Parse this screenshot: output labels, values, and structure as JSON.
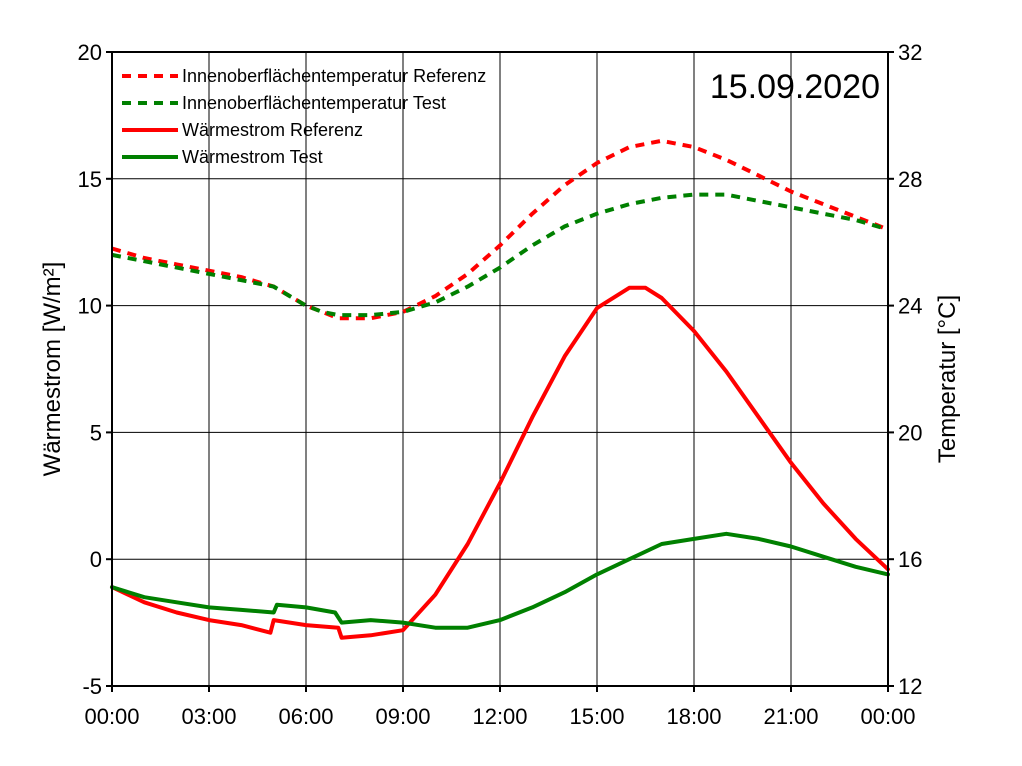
{
  "chart_data": {
    "type": "line",
    "date_label": "15.09.2020",
    "xlabel": "",
    "ylabel_left": "Wärmestrom [W/m²]",
    "ylabel_right": "Temperatur [°C]",
    "x_ticks": [
      "00:00",
      "03:00",
      "06:00",
      "09:00",
      "12:00",
      "15:00",
      "18:00",
      "21:00",
      "00:00"
    ],
    "xlim_hours": [
      0,
      24
    ],
    "ylim_left": [
      -5,
      20
    ],
    "yticks_left": [
      "-5",
      "0",
      "5",
      "10",
      "15",
      "20"
    ],
    "ylim_right": [
      12,
      32
    ],
    "yticks_right": [
      "12",
      "16",
      "20",
      "24",
      "28",
      "32"
    ],
    "grid": true,
    "legend_position": "top-left",
    "series": [
      {
        "name": "Innenoberflächentemperatur Referenz",
        "axis": "right",
        "style": "dashed",
        "color": "#ff0000",
        "points": [
          [
            0,
            25.8
          ],
          [
            1,
            25.5
          ],
          [
            2,
            25.3
          ],
          [
            3,
            25.1
          ],
          [
            4,
            24.9
          ],
          [
            5,
            24.6
          ],
          [
            5.5,
            24.3
          ],
          [
            6,
            24.0
          ],
          [
            6.5,
            23.8
          ],
          [
            7,
            23.6
          ],
          [
            8,
            23.6
          ],
          [
            9,
            23.8
          ],
          [
            10,
            24.3
          ],
          [
            11,
            25.0
          ],
          [
            12,
            25.9
          ],
          [
            13,
            26.9
          ],
          [
            14,
            27.8
          ],
          [
            15,
            28.5
          ],
          [
            16,
            29.0
          ],
          [
            17,
            29.2
          ],
          [
            18,
            29.0
          ],
          [
            19,
            28.6
          ],
          [
            20,
            28.1
          ],
          [
            21,
            27.6
          ],
          [
            22,
            27.2
          ],
          [
            23,
            26.8
          ],
          [
            24,
            26.4
          ]
        ]
      },
      {
        "name": "Innenoberflächentemperatur Test",
        "axis": "right",
        "style": "dashed",
        "color": "#008000",
        "points": [
          [
            0,
            25.6
          ],
          [
            1,
            25.4
          ],
          [
            2,
            25.2
          ],
          [
            3,
            25.0
          ],
          [
            4,
            24.8
          ],
          [
            5,
            24.6
          ],
          [
            5.5,
            24.3
          ],
          [
            6,
            24.0
          ],
          [
            6.5,
            23.8
          ],
          [
            7,
            23.7
          ],
          [
            8,
            23.7
          ],
          [
            9,
            23.8
          ],
          [
            10,
            24.1
          ],
          [
            11,
            24.6
          ],
          [
            12,
            25.2
          ],
          [
            13,
            25.9
          ],
          [
            14,
            26.5
          ],
          [
            15,
            26.9
          ],
          [
            16,
            27.2
          ],
          [
            17,
            27.4
          ],
          [
            18,
            27.5
          ],
          [
            19,
            27.5
          ],
          [
            20,
            27.3
          ],
          [
            21,
            27.1
          ],
          [
            22,
            26.9
          ],
          [
            23,
            26.7
          ],
          [
            24,
            26.4
          ]
        ]
      },
      {
        "name": "Wärmestrom Referenz",
        "axis": "left",
        "style": "solid",
        "color": "#ff0000",
        "points": [
          [
            0,
            -1.1
          ],
          [
            1,
            -1.7
          ],
          [
            2,
            -2.1
          ],
          [
            3,
            -2.4
          ],
          [
            4,
            -2.6
          ],
          [
            4.9,
            -2.9
          ],
          [
            5.0,
            -2.4
          ],
          [
            6,
            -2.6
          ],
          [
            7,
            -2.7
          ],
          [
            7.1,
            -3.1
          ],
          [
            8,
            -3.0
          ],
          [
            9,
            -2.8
          ],
          [
            10,
            -1.4
          ],
          [
            11,
            0.6
          ],
          [
            12,
            3.0
          ],
          [
            13,
            5.6
          ],
          [
            14,
            8.0
          ],
          [
            15,
            9.9
          ],
          [
            16,
            10.7
          ],
          [
            16.5,
            10.7
          ],
          [
            17,
            10.3
          ],
          [
            18,
            9.0
          ],
          [
            19,
            7.4
          ],
          [
            20,
            5.6
          ],
          [
            21,
            3.8
          ],
          [
            22,
            2.2
          ],
          [
            23,
            0.8
          ],
          [
            24,
            -0.4
          ]
        ]
      },
      {
        "name": "Wärmestrom Test",
        "axis": "left",
        "style": "solid",
        "color": "#008000",
        "points": [
          [
            0,
            -1.1
          ],
          [
            1,
            -1.5
          ],
          [
            2,
            -1.7
          ],
          [
            3,
            -1.9
          ],
          [
            4,
            -2.0
          ],
          [
            5,
            -2.1
          ],
          [
            5.1,
            -1.8
          ],
          [
            6,
            -1.9
          ],
          [
            6.9,
            -2.1
          ],
          [
            7.1,
            -2.5
          ],
          [
            8,
            -2.4
          ],
          [
            9,
            -2.5
          ],
          [
            10,
            -2.7
          ],
          [
            11,
            -2.7
          ],
          [
            12,
            -2.4
          ],
          [
            13,
            -1.9
          ],
          [
            14,
            -1.3
          ],
          [
            15,
            -0.6
          ],
          [
            16,
            0.0
          ],
          [
            17,
            0.6
          ],
          [
            18,
            0.8
          ],
          [
            19,
            1.0
          ],
          [
            20,
            0.8
          ],
          [
            21,
            0.5
          ],
          [
            22,
            0.1
          ],
          [
            23,
            -0.3
          ],
          [
            24,
            -0.6
          ]
        ]
      }
    ]
  }
}
